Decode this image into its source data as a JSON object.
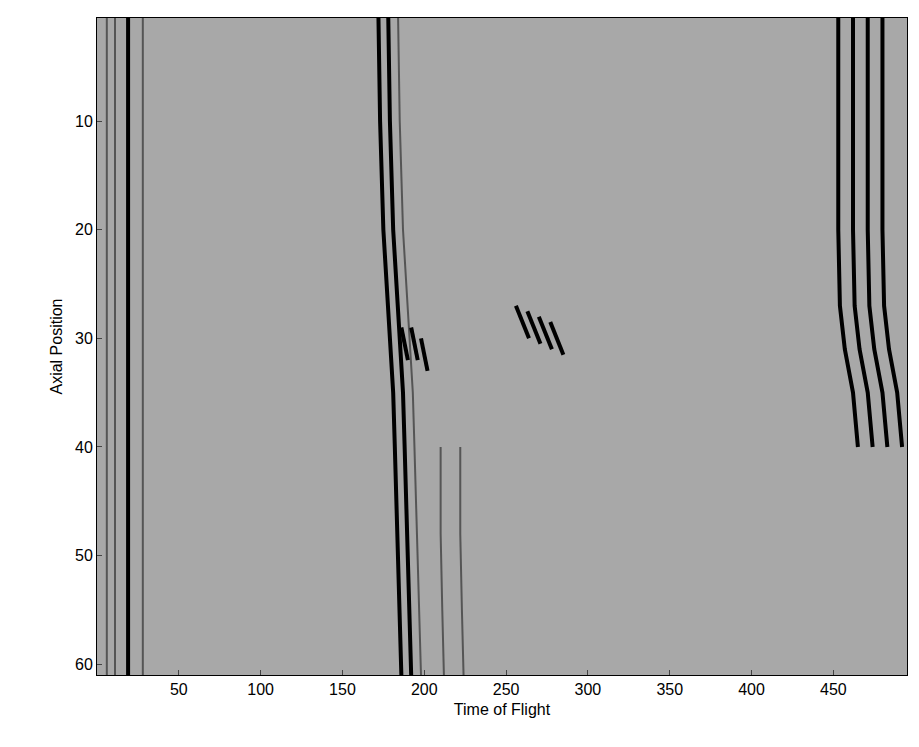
{
  "chart_data": {
    "type": "line",
    "x_label": "Time of Flight",
    "y_label": "Axial Position",
    "xlim": [
      0,
      495
    ],
    "xticks": [
      50,
      100,
      150,
      200,
      250,
      300,
      350,
      400,
      450
    ],
    "ylim": [
      61,
      0.5
    ],
    "yticks": [
      10,
      20,
      30,
      40,
      50,
      60
    ],
    "grid": false,
    "series": [
      {
        "color": "#555555",
        "line_style": "thin",
        "x": [
          6,
          6,
          6,
          6,
          6,
          6,
          6
        ],
        "y": [
          0.5,
          10,
          20,
          30,
          40,
          50,
          61
        ]
      },
      {
        "color": "#555555",
        "line_style": "thin",
        "x": [
          11,
          11,
          11,
          11,
          11,
          11,
          11
        ],
        "y": [
          0.5,
          10,
          20,
          30,
          40,
          50,
          61
        ]
      },
      {
        "color": "#000000",
        "line_style": "thick",
        "x": [
          19,
          19,
          19,
          19,
          19,
          19,
          19
        ],
        "y": [
          0.5,
          10,
          20,
          30,
          40,
          50,
          61
        ]
      },
      {
        "color": "#555555",
        "line_style": "thin",
        "x": [
          28,
          28,
          28,
          28,
          28,
          28,
          28
        ],
        "y": [
          0.5,
          10,
          20,
          30,
          40,
          50,
          61
        ]
      },
      {
        "color": "#000000",
        "line_style": "thick",
        "x": [
          172,
          173,
          175,
          177,
          178,
          179,
          180,
          181,
          182,
          184,
          186
        ],
        "y": [
          0.5,
          10,
          20,
          25,
          28,
          30,
          32,
          35,
          40,
          50,
          61
        ]
      },
      {
        "color": "#000000",
        "line_style": "thick",
        "x": [
          178,
          179,
          181,
          183,
          184,
          185,
          186,
          187,
          188,
          190,
          192
        ],
        "y": [
          0.5,
          10,
          20,
          25,
          28,
          30,
          32,
          35,
          40,
          50,
          61
        ]
      },
      {
        "color": "#555555",
        "line_style": "thin",
        "x": [
          184,
          185,
          187,
          189,
          190,
          191,
          192,
          193,
          194,
          196,
          198
        ],
        "y": [
          0.5,
          10,
          20,
          25,
          28,
          30,
          32,
          35,
          40,
          50,
          61
        ]
      },
      {
        "color": "#555555",
        "line_style": "thin",
        "x": [
          210,
          210,
          211,
          212
        ],
        "y": [
          40,
          48,
          55,
          61
        ]
      },
      {
        "color": "#555555",
        "line_style": "thin",
        "x": [
          222,
          222,
          223,
          224
        ],
        "y": [
          40,
          48,
          55,
          61
        ]
      },
      {
        "color": "#000000",
        "line_style": "thick",
        "x": [
          186,
          190
        ],
        "y": [
          29,
          32
        ]
      },
      {
        "color": "#000000",
        "line_style": "thick",
        "x": [
          192,
          196
        ],
        "y": [
          29,
          32
        ]
      },
      {
        "color": "#000000",
        "line_style": "thick",
        "x": [
          198,
          202
        ],
        "y": [
          30,
          33
        ]
      },
      {
        "color": "#000000",
        "line_style": "thick",
        "x": [
          256,
          264
        ],
        "y": [
          27,
          30
        ]
      },
      {
        "color": "#000000",
        "line_style": "thick",
        "x": [
          263,
          271
        ],
        "y": [
          27.5,
          30.5
        ]
      },
      {
        "color": "#000000",
        "line_style": "thick",
        "x": [
          270,
          278
        ],
        "y": [
          28,
          31
        ]
      },
      {
        "color": "#000000",
        "line_style": "thick",
        "x": [
          277,
          285
        ],
        "y": [
          28.5,
          31.5
        ]
      },
      {
        "color": "#000000",
        "line_style": "thick",
        "x": [
          453,
          453,
          453,
          454,
          457,
          462,
          465
        ],
        "y": [
          0.5,
          10,
          20,
          27,
          31,
          35,
          40
        ]
      },
      {
        "color": "#000000",
        "line_style": "thick",
        "x": [
          462,
          462,
          462,
          463,
          466,
          471,
          474
        ],
        "y": [
          0.5,
          10,
          20,
          27,
          31,
          35,
          40
        ]
      },
      {
        "color": "#000000",
        "line_style": "thick",
        "x": [
          471,
          471,
          471,
          472,
          475,
          480,
          483
        ],
        "y": [
          0.5,
          10,
          20,
          27,
          31,
          35,
          40
        ]
      },
      {
        "color": "#000000",
        "line_style": "thick",
        "x": [
          480,
          480,
          480,
          481,
          484,
          489,
          492
        ],
        "y": [
          0.5,
          10,
          20,
          27,
          31,
          35,
          40
        ]
      }
    ]
  }
}
